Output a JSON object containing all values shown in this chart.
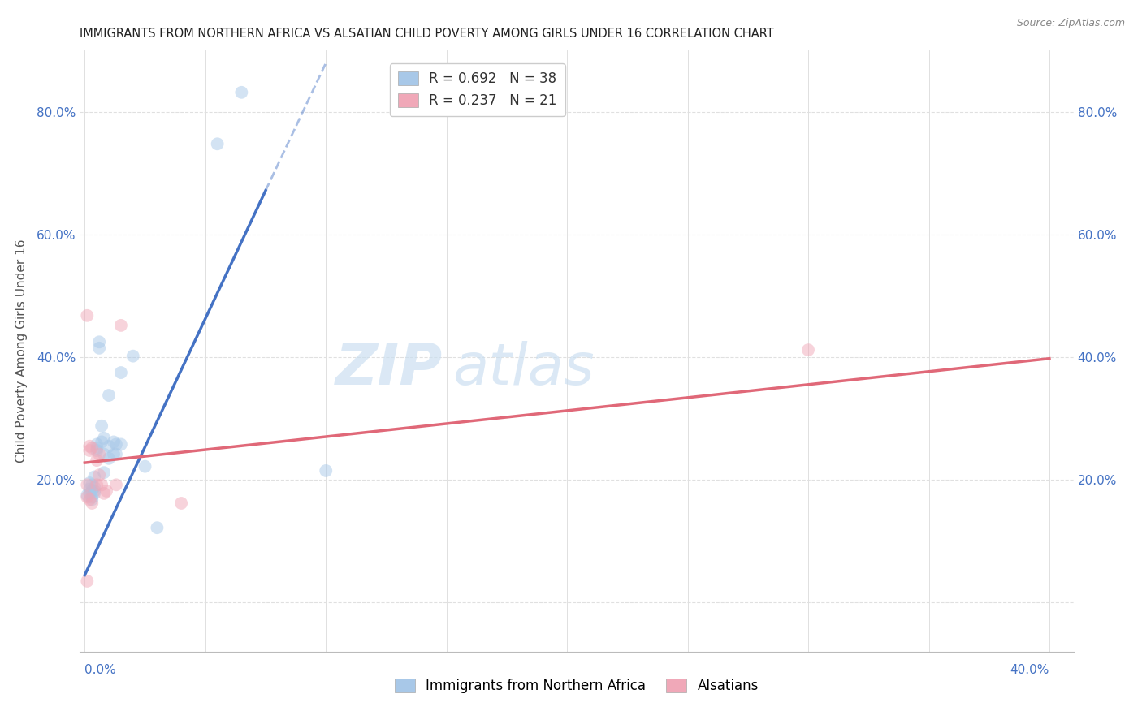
{
  "title": "IMMIGRANTS FROM NORTHERN AFRICA VS ALSATIAN CHILD POVERTY AMONG GIRLS UNDER 16 CORRELATION CHART",
  "source": "Source: ZipAtlas.com",
  "ylabel": "Child Poverty Among Girls Under 16",
  "blue_scatter": [
    [
      0.001,
      0.175
    ],
    [
      0.002,
      0.195
    ],
    [
      0.002,
      0.185
    ],
    [
      0.002,
      0.178
    ],
    [
      0.003,
      0.192
    ],
    [
      0.003,
      0.183
    ],
    [
      0.003,
      0.172
    ],
    [
      0.003,
      0.168
    ],
    [
      0.004,
      0.188
    ],
    [
      0.004,
      0.182
    ],
    [
      0.004,
      0.205
    ],
    [
      0.004,
      0.178
    ],
    [
      0.005,
      0.258
    ],
    [
      0.005,
      0.248
    ],
    [
      0.005,
      0.252
    ],
    [
      0.006,
      0.425
    ],
    [
      0.006,
      0.415
    ],
    [
      0.007,
      0.288
    ],
    [
      0.007,
      0.262
    ],
    [
      0.008,
      0.268
    ],
    [
      0.008,
      0.242
    ],
    [
      0.008,
      0.212
    ],
    [
      0.01,
      0.338
    ],
    [
      0.01,
      0.255
    ],
    [
      0.01,
      0.235
    ],
    [
      0.012,
      0.262
    ],
    [
      0.012,
      0.242
    ],
    [
      0.013,
      0.258
    ],
    [
      0.013,
      0.242
    ],
    [
      0.015,
      0.375
    ],
    [
      0.015,
      0.258
    ],
    [
      0.02,
      0.402
    ],
    [
      0.025,
      0.222
    ],
    [
      0.03,
      0.122
    ],
    [
      0.055,
      0.748
    ],
    [
      0.065,
      0.832
    ],
    [
      0.1,
      0.215
    ]
  ],
  "pink_scatter": [
    [
      0.001,
      0.035
    ],
    [
      0.001,
      0.172
    ],
    [
      0.001,
      0.192
    ],
    [
      0.001,
      0.468
    ],
    [
      0.002,
      0.168
    ],
    [
      0.002,
      0.248
    ],
    [
      0.002,
      0.255
    ],
    [
      0.003,
      0.162
    ],
    [
      0.003,
      0.252
    ],
    [
      0.005,
      0.192
    ],
    [
      0.005,
      0.232
    ],
    [
      0.006,
      0.208
    ],
    [
      0.006,
      0.242
    ],
    [
      0.007,
      0.192
    ],
    [
      0.008,
      0.178
    ],
    [
      0.009,
      0.182
    ],
    [
      0.013,
      0.192
    ],
    [
      0.015,
      0.452
    ],
    [
      0.04,
      0.162
    ],
    [
      0.3,
      0.412
    ]
  ],
  "blue_line_solid": [
    [
      0.0,
      0.045
    ],
    [
      0.075,
      0.672
    ]
  ],
  "blue_line_dash": [
    [
      0.075,
      0.672
    ],
    [
      0.1,
      0.88
    ]
  ],
  "pink_line": [
    [
      0.0,
      0.228
    ],
    [
      0.4,
      0.398
    ]
  ],
  "xlim": [
    -0.002,
    0.41
  ],
  "ylim": [
    -0.08,
    0.9
  ],
  "yticks": [
    0.0,
    0.2,
    0.4,
    0.6,
    0.8
  ],
  "ytick_labels": [
    "",
    "20.0%",
    "40.0%",
    "60.0%",
    "80.0%"
  ],
  "xtick_positions": [
    0.0,
    0.05,
    0.1,
    0.15,
    0.2,
    0.25,
    0.3,
    0.35,
    0.4
  ],
  "blue_color": "#a8c8e8",
  "pink_color": "#f0a8b8",
  "blue_line_color": "#4472c4",
  "pink_line_color": "#e06878",
  "grid_color": "#e0e0e0",
  "title_color": "#222222",
  "axis_tick_color": "#4472c4",
  "marker_size": 130,
  "marker_alpha": 0.5,
  "legend_top": [
    {
      "patch_color": "#a8c8e8",
      "r_val": "0.692",
      "n_val": "38"
    },
    {
      "patch_color": "#f0a8b8",
      "r_val": "0.237",
      "n_val": "21"
    }
  ],
  "legend_bottom": [
    {
      "patch_color": "#a8c8e8",
      "label": "Immigrants from Northern Africa"
    },
    {
      "patch_color": "#f0a8b8",
      "label": "Alsatians"
    }
  ]
}
